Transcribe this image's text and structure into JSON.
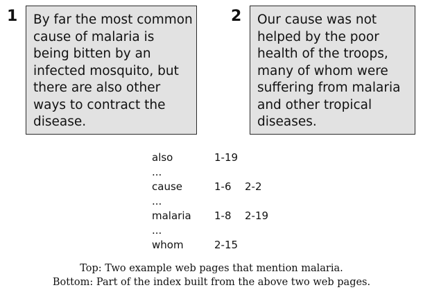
{
  "documents": [
    {
      "number": "1",
      "lines": [
        "By far the most common",
        "cause of malaria is",
        "being bitten by an",
        "infected mosquito, but",
        "there are also other",
        "ways to contract the",
        "disease."
      ]
    },
    {
      "number": "2",
      "lines": [
        "Our cause was not",
        "helped by the poor",
        "health of the troops,",
        "many of whom were",
        "suffering from malaria",
        "and other tropical",
        "diseases."
      ]
    }
  ],
  "index": [
    {
      "term": "also",
      "postings": [
        "1-19"
      ]
    },
    {
      "term": "...",
      "postings": []
    },
    {
      "term": "cause",
      "postings": [
        "1-6",
        "2-2"
      ]
    },
    {
      "term": "...",
      "postings": []
    },
    {
      "term": "malaria",
      "postings": [
        "1-8",
        "2-19"
      ]
    },
    {
      "term": "...",
      "postings": []
    },
    {
      "term": "whom",
      "postings": [
        "2-15"
      ]
    }
  ],
  "caption": [
    "Top: Two example web pages that mention malaria.",
    "Bottom: Part of the index built from the above two web pages."
  ]
}
